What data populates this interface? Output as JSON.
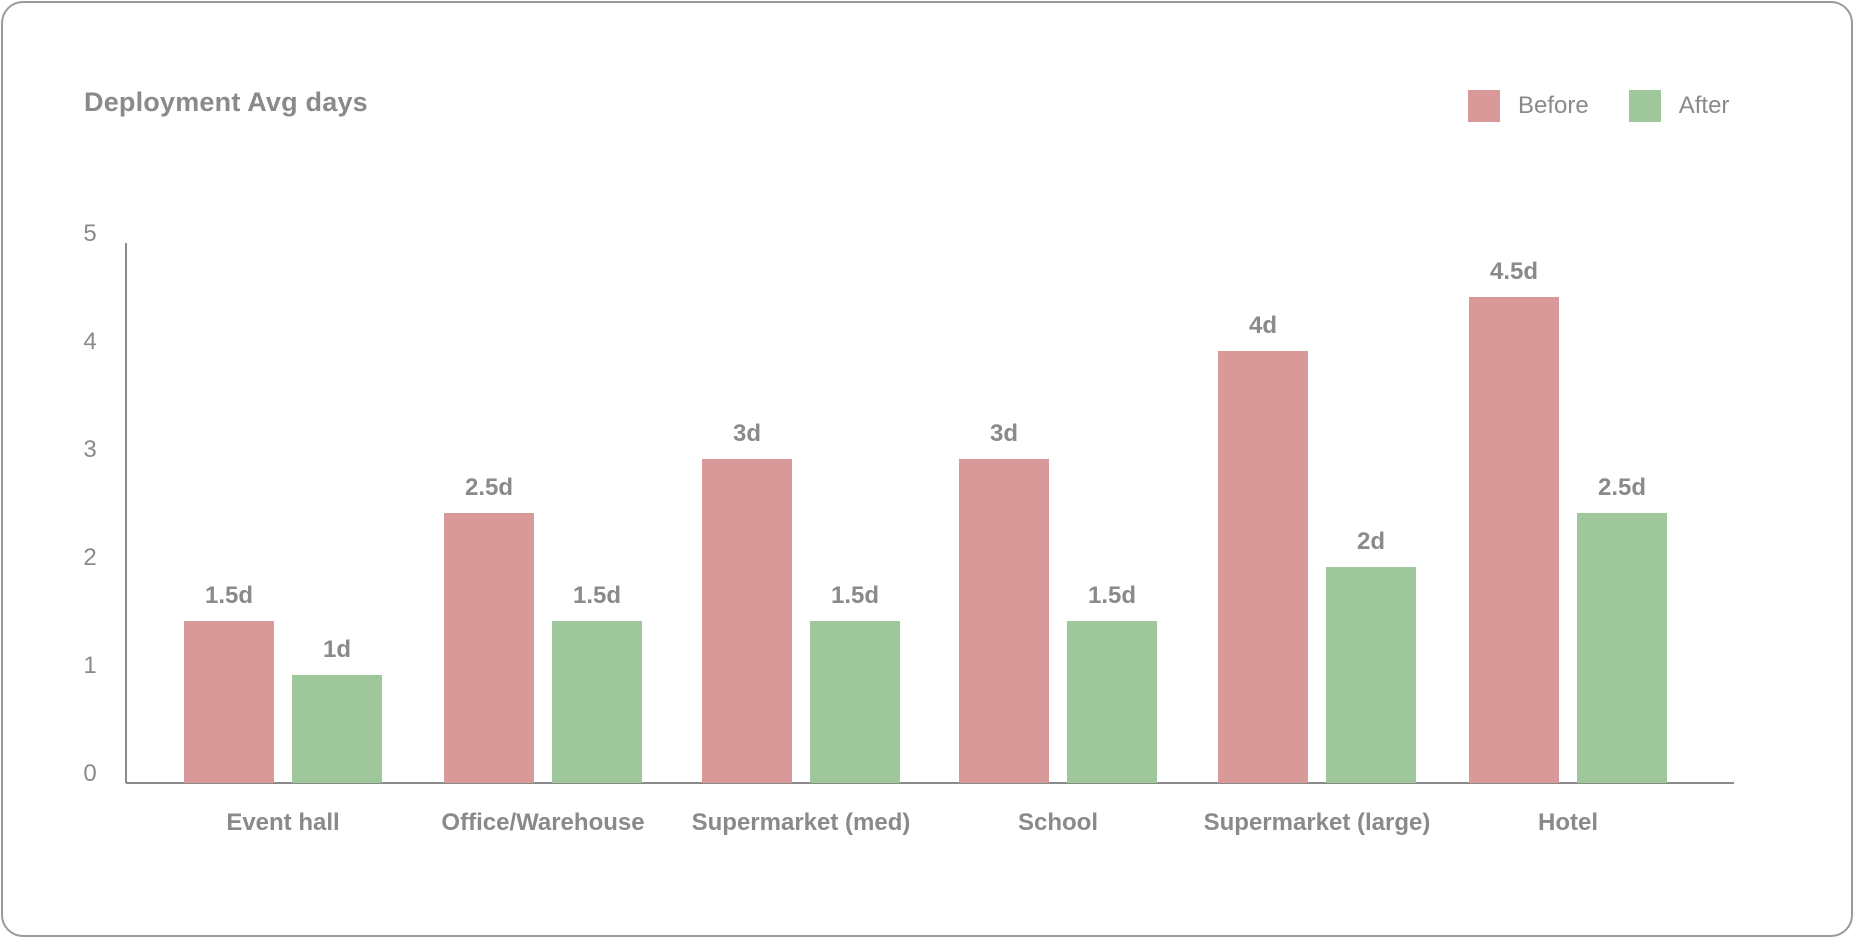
{
  "chart_data": {
    "type": "bar",
    "title": "Deployment Avg days",
    "xlabel": "",
    "ylabel": "",
    "ylim": [
      0,
      5
    ],
    "yticks": [
      "0",
      "1",
      "2",
      "3",
      "4",
      "5"
    ],
    "categories": [
      "Event hall",
      "Office/Warehouse",
      "Supermarket (med)",
      "School",
      "Supermarket (large)",
      "Hotel"
    ],
    "series": [
      {
        "name": "Before",
        "color": "#d89a99",
        "values": [
          1.5,
          2.5,
          3,
          3,
          4,
          4.5
        ],
        "labels": [
          "1.5d",
          "2.5d",
          "3d",
          "3d",
          "4d",
          "4.5d"
        ]
      },
      {
        "name": "After",
        "color": "#9ec89c",
        "values": [
          1,
          1.5,
          1.5,
          1.5,
          2,
          2.5
        ],
        "labels": [
          "1d",
          "1.5d",
          "1.5d",
          "1.5d",
          "2d",
          "2.5d"
        ]
      }
    ],
    "grid": false,
    "legend_position": "top-right"
  }
}
